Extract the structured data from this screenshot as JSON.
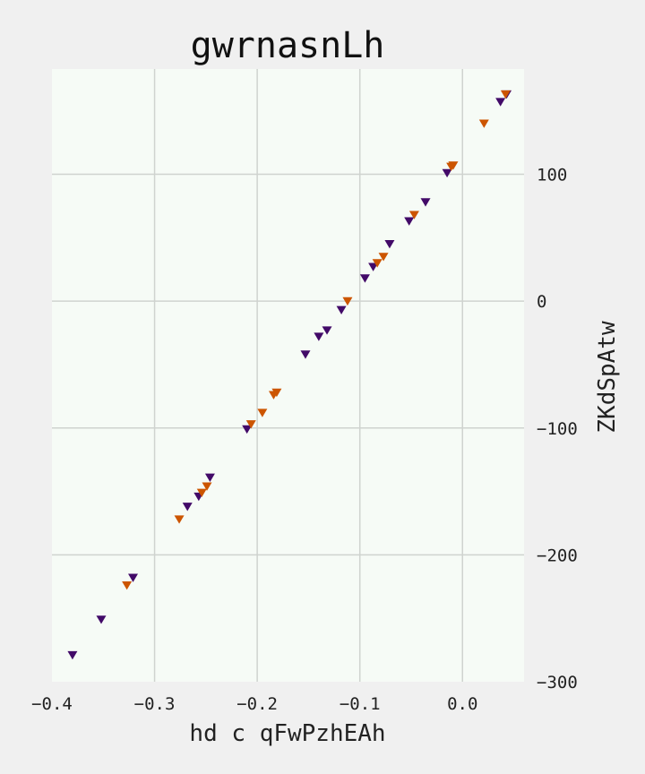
{
  "chart_data": {
    "type": "scatter",
    "title": "gwrnasnLh",
    "xlabel": "hd c qFwPzhEAh",
    "ylabel": "ZKdSpAtw",
    "xlim": [
      -0.4,
      0.06
    ],
    "ylim": [
      -300,
      183
    ],
    "xticks": [
      -0.4,
      -0.3,
      -0.2,
      -0.1,
      0.0
    ],
    "xtick_labels": [
      "−0.4",
      "−0.3",
      "−0.2",
      "−0.1",
      "0.0"
    ],
    "yticks": [
      100,
      0,
      -100,
      -200,
      -300
    ],
    "ytick_labels": [
      "100",
      "0",
      "−100",
      "−200",
      "−300"
    ],
    "y_axis_side": "right",
    "grid": true,
    "marker": "triangle-down",
    "colors": {
      "background": "#f0f0f0",
      "plot_background": "#f6fbf6",
      "grid": "#cfd3cf"
    },
    "series": [
      {
        "color": "#420a68",
        "x": [
          -0.38,
          -0.352,
          -0.321,
          -0.268,
          -0.257,
          -0.246,
          -0.21,
          -0.153,
          -0.14,
          -0.132,
          -0.118,
          -0.095,
          -0.087,
          -0.071,
          -0.052,
          -0.036,
          -0.015,
          0.037,
          0.043
        ],
        "y": [
          -279,
          -251,
          -218,
          -162,
          -154,
          -139,
          -101,
          -42,
          -28,
          -23,
          -7,
          18,
          27,
          45,
          63,
          78,
          101,
          157,
          163
        ]
      },
      {
        "color": "#cc5500",
        "x": [
          -0.327,
          -0.276,
          -0.254,
          -0.249,
          -0.206,
          -0.195,
          -0.184,
          -0.181,
          -0.112,
          -0.083,
          -0.077,
          -0.047,
          -0.011,
          -0.009,
          0.021,
          0.042
        ],
        "y": [
          -224,
          -172,
          -151,
          -146,
          -97,
          -88,
          -74,
          -72,
          0,
          30,
          35,
          68,
          106,
          107,
          140,
          163
        ]
      }
    ]
  }
}
